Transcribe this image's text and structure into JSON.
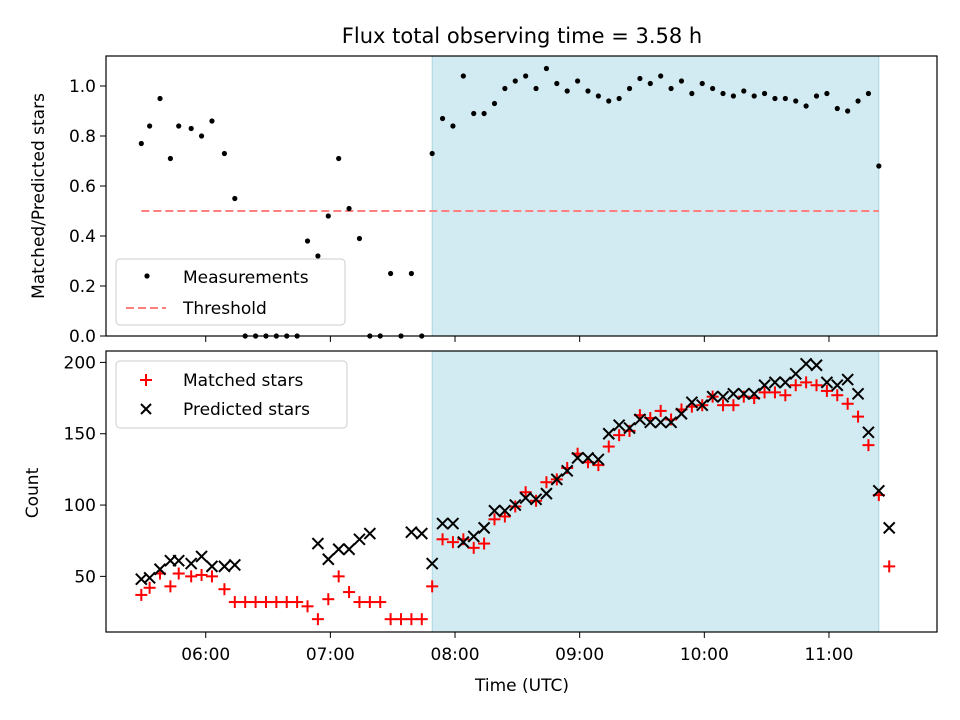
{
  "title": "Flux total observing time = 3.58 h",
  "colors": {
    "measurements": "#000000",
    "threshold": "#ff7f7f",
    "matched": "#ff0000",
    "predicted": "#000000",
    "observing_window": "#add8e6"
  },
  "chart_data": [
    {
      "type": "scatter",
      "ylabel": "Matched/Predicted stars",
      "xlim": [
        "05:12",
        "11:52"
      ],
      "ylim": [
        0,
        1.12
      ],
      "yticks": [
        "0.0",
        "0.2",
        "0.4",
        "0.6",
        "0.8",
        "1.0"
      ],
      "shaded_span": [
        "07:49",
        "11:24"
      ],
      "legend": {
        "placement": "lower-left",
        "entries": [
          "Measurements",
          "Threshold"
        ]
      },
      "threshold": {
        "name": "Threshold",
        "y": 0.5,
        "x_range": [
          "05:29",
          "11:24"
        ]
      },
      "series": [
        {
          "name": "Measurements",
          "points": [
            [
              "05:29",
              0.77
            ],
            [
              "05:33",
              0.84
            ],
            [
              "05:38",
              0.95
            ],
            [
              "05:43",
              0.71
            ],
            [
              "05:47",
              0.84
            ],
            [
              "05:53",
              0.83
            ],
            [
              "05:58",
              0.8
            ],
            [
              "06:03",
              0.86
            ],
            [
              "06:09",
              0.73
            ],
            [
              "06:14",
              0.55
            ],
            [
              "06:19",
              0.0
            ],
            [
              "06:24",
              0.0
            ],
            [
              "06:29",
              0.0
            ],
            [
              "06:34",
              0.0
            ],
            [
              "06:39",
              0.0
            ],
            [
              "06:44",
              0.0
            ],
            [
              "06:49",
              0.38
            ],
            [
              "06:54",
              0.32
            ],
            [
              "06:59",
              0.48
            ],
            [
              "07:04",
              0.71
            ],
            [
              "07:09",
              0.51
            ],
            [
              "07:14",
              0.39
            ],
            [
              "07:19",
              0.0
            ],
            [
              "07:24",
              0.0
            ],
            [
              "07:29",
              0.25
            ],
            [
              "07:34",
              0.0
            ],
            [
              "07:39",
              0.25
            ],
            [
              "07:44",
              0.0
            ],
            [
              "07:49",
              0.73
            ],
            [
              "07:54",
              0.87
            ],
            [
              "07:59",
              0.84
            ],
            [
              "08:04",
              1.04
            ],
            [
              "08:09",
              0.89
            ],
            [
              "08:14",
              0.89
            ],
            [
              "08:19",
              0.93
            ],
            [
              "08:24",
              0.99
            ],
            [
              "08:29",
              1.02
            ],
            [
              "08:34",
              1.04
            ],
            [
              "08:39",
              0.99
            ],
            [
              "08:44",
              1.07
            ],
            [
              "08:49",
              1.01
            ],
            [
              "08:54",
              0.98
            ],
            [
              "08:59",
              1.02
            ],
            [
              "09:04",
              0.98
            ],
            [
              "09:09",
              0.96
            ],
            [
              "09:14",
              0.94
            ],
            [
              "09:19",
              0.95
            ],
            [
              "09:24",
              0.99
            ],
            [
              "09:29",
              1.03
            ],
            [
              "09:34",
              1.01
            ],
            [
              "09:39",
              1.04
            ],
            [
              "09:44",
              0.99
            ],
            [
              "09:49",
              1.02
            ],
            [
              "09:54",
              0.97
            ],
            [
              "09:59",
              1.01
            ],
            [
              "10:04",
              0.99
            ],
            [
              "10:09",
              0.97
            ],
            [
              "10:14",
              0.96
            ],
            [
              "10:19",
              0.98
            ],
            [
              "10:24",
              0.96
            ],
            [
              "10:29",
              0.97
            ],
            [
              "10:34",
              0.95
            ],
            [
              "10:39",
              0.95
            ],
            [
              "10:44",
              0.94
            ],
            [
              "10:49",
              0.92
            ],
            [
              "10:54",
              0.96
            ],
            [
              "10:59",
              0.97
            ],
            [
              "11:04",
              0.91
            ],
            [
              "11:09",
              0.9
            ],
            [
              "11:14",
              0.94
            ],
            [
              "11:19",
              0.97
            ],
            [
              "11:24",
              0.68
            ]
          ]
        }
      ]
    },
    {
      "type": "scatter",
      "xlabel": "Time (UTC)",
      "ylabel": "Count",
      "xlim": [
        "05:12",
        "11:52"
      ],
      "ylim": [
        11,
        208
      ],
      "yticks": [
        "50",
        "100",
        "150",
        "200"
      ],
      "xticks": [
        "06:00",
        "07:00",
        "08:00",
        "09:00",
        "10:00",
        "11:00"
      ],
      "shaded_span": [
        "07:49",
        "11:24"
      ],
      "legend": {
        "placement": "upper-left",
        "entries": [
          "Matched stars",
          "Predicted stars"
        ]
      },
      "series": [
        {
          "name": "Matched stars",
          "points": [
            [
              "05:29",
              37
            ],
            [
              "05:33",
              42
            ],
            [
              "05:38",
              52
            ],
            [
              "05:43",
              43
            ],
            [
              "05:47",
              52
            ],
            [
              "05:53",
              50
            ],
            [
              "05:58",
              51
            ],
            [
              "06:03",
              50
            ],
            [
              "06:09",
              41
            ],
            [
              "06:14",
              32
            ],
            [
              "06:19",
              32
            ],
            [
              "06:24",
              32
            ],
            [
              "06:29",
              32
            ],
            [
              "06:34",
              32
            ],
            [
              "06:39",
              32
            ],
            [
              "06:44",
              32
            ],
            [
              "06:49",
              29
            ],
            [
              "06:54",
              20
            ],
            [
              "06:59",
              34
            ],
            [
              "07:04",
              50
            ],
            [
              "07:09",
              39
            ],
            [
              "07:14",
              32
            ],
            [
              "07:19",
              32
            ],
            [
              "07:24",
              32
            ],
            [
              "07:29",
              20
            ],
            [
              "07:34",
              20
            ],
            [
              "07:39",
              20
            ],
            [
              "07:44",
              20
            ],
            [
              "07:49",
              43
            ],
            [
              "07:54",
              76
            ],
            [
              "07:59",
              74
            ],
            [
              "08:04",
              76
            ],
            [
              "08:09",
              70
            ],
            [
              "08:14",
              73
            ],
            [
              "08:19",
              90
            ],
            [
              "08:24",
              92
            ],
            [
              "08:29",
              99
            ],
            [
              "08:34",
              109
            ],
            [
              "08:39",
              103
            ],
            [
              "08:44",
              116
            ],
            [
              "08:49",
              118
            ],
            [
              "08:54",
              126
            ],
            [
              "08:59",
              136
            ],
            [
              "09:04",
              130
            ],
            [
              "09:09",
              128
            ],
            [
              "09:14",
              141
            ],
            [
              "09:19",
              149
            ],
            [
              "09:24",
              152
            ],
            [
              "09:29",
              163
            ],
            [
              "09:34",
              161
            ],
            [
              "09:39",
              166
            ],
            [
              "09:44",
              160
            ],
            [
              "09:49",
              167
            ],
            [
              "09:54",
              169
            ],
            [
              "09:59",
              170
            ],
            [
              "10:04",
              176
            ],
            [
              "10:09",
              170
            ],
            [
              "10:14",
              170
            ],
            [
              "10:19",
              176
            ],
            [
              "10:24",
              175
            ],
            [
              "10:29",
              179
            ],
            [
              "10:34",
              179
            ],
            [
              "10:39",
              177
            ],
            [
              "10:44",
              184
            ],
            [
              "10:49",
              186
            ],
            [
              "10:54",
              184
            ],
            [
              "10:59",
              180
            ],
            [
              "11:04",
              177
            ],
            [
              "11:09",
              171
            ],
            [
              "11:14",
              162
            ],
            [
              "11:19",
              142
            ],
            [
              "11:24",
              107
            ],
            [
              "11:29",
              57
            ]
          ]
        },
        {
          "name": "Predicted stars",
          "points": [
            [
              "05:29",
              48
            ],
            [
              "05:33",
              49
            ],
            [
              "05:38",
              55
            ],
            [
              "05:43",
              61
            ],
            [
              "05:47",
              61
            ],
            [
              "05:53",
              59
            ],
            [
              "05:58",
              64
            ],
            [
              "06:03",
              57
            ],
            [
              "06:09",
              57
            ],
            [
              "06:14",
              58
            ],
            [
              "06:54",
              73
            ],
            [
              "06:59",
              62
            ],
            [
              "07:04",
              69
            ],
            [
              "07:09",
              69
            ],
            [
              "07:14",
              76
            ],
            [
              "07:19",
              80
            ],
            [
              "07:39",
              81
            ],
            [
              "07:44",
              80
            ],
            [
              "07:49",
              59
            ],
            [
              "07:54",
              87
            ],
            [
              "07:59",
              87
            ],
            [
              "08:04",
              74
            ],
            [
              "08:09",
              78
            ],
            [
              "08:14",
              84
            ],
            [
              "08:19",
              96
            ],
            [
              "08:24",
              96
            ],
            [
              "08:29",
              100
            ],
            [
              "08:34",
              105
            ],
            [
              "08:39",
              104
            ],
            [
              "08:44",
              108
            ],
            [
              "08:49",
              118
            ],
            [
              "08:54",
              124
            ],
            [
              "08:59",
              133
            ],
            [
              "09:04",
              133
            ],
            [
              "09:09",
              132
            ],
            [
              "09:14",
              150
            ],
            [
              "09:19",
              156
            ],
            [
              "09:24",
              154
            ],
            [
              "09:29",
              160
            ],
            [
              "09:34",
              158
            ],
            [
              "09:39",
              158
            ],
            [
              "09:44",
              158
            ],
            [
              "09:49",
              164
            ],
            [
              "09:54",
              172
            ],
            [
              "09:59",
              170
            ],
            [
              "10:04",
              176
            ],
            [
              "10:09",
              176
            ],
            [
              "10:14",
              178
            ],
            [
              "10:19",
              178
            ],
            [
              "10:24",
              178
            ],
            [
              "10:29",
              184
            ],
            [
              "10:34",
              186
            ],
            [
              "10:39",
              186
            ],
            [
              "10:44",
              192
            ],
            [
              "10:49",
              199
            ],
            [
              "10:54",
              198
            ],
            [
              "10:59",
              186
            ],
            [
              "11:04",
              184
            ],
            [
              "11:09",
              188
            ],
            [
              "11:14",
              178
            ],
            [
              "11:19",
              151
            ],
            [
              "11:24",
              110
            ],
            [
              "11:29",
              84
            ]
          ]
        }
      ]
    }
  ]
}
